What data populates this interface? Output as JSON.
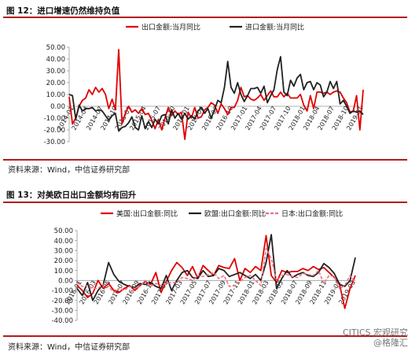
{
  "figures": [
    {
      "title": "图 12：进口增速仍然维持负值",
      "source": "资料来源：Wind，中信证券研究部"
    },
    {
      "title": "图 13：对美欧日出口金额均有回升",
      "source": "资料来源：Wind，中信证券研究部"
    }
  ],
  "watermark": {
    "line1": "CITICS 宏观研究",
    "line2": "@格隆汇"
  },
  "chart_data": [
    {
      "type": "line",
      "title": "",
      "ylim": [
        -30,
        50
      ],
      "yticks": [
        "50.00",
        "40.00",
        "30.00",
        "20.00",
        "10.00",
        "0.00",
        "-10.00",
        "-20.00",
        "-30.00"
      ],
      "yvals": [
        50,
        40,
        30,
        20,
        10,
        0,
        -10,
        -20,
        -30
      ],
      "xtick_labels": [
        "2014-01",
        "2014-04",
        "2014-07",
        "2014-10",
        "2015-01",
        "2015-04",
        "2015-07",
        "2015-10",
        "2016-01",
        "2016-04",
        "2016-07",
        "2016-10",
        "2017-01",
        "2017-04",
        "2017-07",
        "2017-10",
        "2018-01",
        "2018-04",
        "2018-07",
        "2018-10",
        "2019-01"
      ],
      "legend_position": "top",
      "series": [
        {
          "name": "出口金额:当月同比",
          "color": "#e00000",
          "dashed": false,
          "values": [
            8,
            -15,
            -10,
            0,
            5,
            7,
            14,
            10,
            16,
            12,
            15,
            10,
            -2,
            6,
            -3,
            48,
            -15,
            -6,
            0,
            -5,
            -3,
            -6,
            -2,
            -7,
            -6,
            -12,
            -19,
            -11,
            -20,
            -10,
            -1,
            -8,
            -4,
            -7,
            -5,
            -28,
            -5,
            -10,
            -1,
            -10,
            -9,
            -3,
            -1,
            3,
            1,
            -6,
            2,
            -2,
            -7,
            -1,
            -1,
            5,
            16,
            8,
            9,
            6,
            5,
            7,
            10,
            5,
            9,
            13,
            8,
            8,
            12,
            8,
            11,
            7,
            7,
            7,
            10,
            1,
            -4,
            9,
            -2,
            12,
            12,
            11,
            12,
            10,
            12,
            13,
            12,
            7,
            3,
            -5,
            -4,
            9,
            -20,
            14
          ]
        },
        {
          "name": "进口金额:当月同比",
          "color": "#222222",
          "dashed": false,
          "values": [
            10,
            9,
            -11,
            1,
            -4,
            -2,
            -2,
            -1,
            -4,
            -3,
            -4,
            -8,
            -12,
            -8,
            -6,
            -21,
            -18,
            -17,
            -14,
            -9,
            -18,
            -20,
            -8,
            -19,
            -13,
            -18,
            -11,
            -15,
            -8,
            -7,
            -15,
            -3,
            -10,
            -6,
            -11,
            -6,
            -11,
            -8,
            -11,
            -4,
            -1,
            -6,
            -2,
            -10,
            -3,
            5,
            3,
            16,
            38,
            16,
            11,
            20,
            10,
            4,
            9,
            15,
            15,
            16,
            11,
            17,
            3,
            9,
            14,
            31,
            42,
            12,
            9,
            22,
            17,
            24,
            27,
            14,
            20,
            21,
            14,
            20,
            18,
            8,
            12,
            21,
            15,
            21,
            2,
            5,
            0,
            -6,
            -4,
            -5,
            -4,
            -7
          ]
        }
      ]
    },
    {
      "type": "line",
      "title": "",
      "ylim": [
        -40,
        50
      ],
      "yticks": [
        "50.00",
        "40.00",
        "30.00",
        "20.00",
        "10.00",
        "0.00",
        "-10.00",
        "-20.00",
        "-30.00",
        "-40.00"
      ],
      "yvals": [
        50,
        40,
        30,
        20,
        10,
        0,
        -10,
        -20,
        -30,
        -40
      ],
      "xtick_labels": [
        "2016-01",
        "2016-03",
        "2016-05",
        "2016-07",
        "2016-09",
        "2016-11",
        "2017-01",
        "2017-03",
        "2017-05",
        "2017-07",
        "2017-09",
        "2017-11",
        "2018-01",
        "2018-03",
        "2018-05",
        "2018-07",
        "2018-09",
        "2018-11",
        "2019-01",
        "2019-03"
      ],
      "legend_position": "top",
      "series": [
        {
          "name": "美国:出口金额:同比",
          "color": "#e00000",
          "dashed": false,
          "values": [
            -5,
            -10,
            -17,
            -13,
            0,
            -8,
            -3,
            -10,
            -12,
            -8,
            -5,
            -10,
            -5,
            -1,
            -4,
            8,
            -12,
            -1,
            10,
            18,
            13,
            5,
            14,
            2,
            15,
            10,
            5,
            15,
            13,
            12,
            22,
            0,
            12,
            8,
            14,
            10,
            45,
            5,
            -2,
            10,
            8,
            9,
            9,
            12,
            10,
            14,
            11,
            13,
            8,
            3,
            -4,
            -28,
            -8,
            5
          ]
        },
        {
          "name": "欧盟:出口金额:同比",
          "color": "#222222",
          "dashed": false,
          "values": [
            -8,
            -15,
            -2,
            -20,
            -10,
            -4,
            18,
            6,
            -1,
            -4,
            -6,
            -7,
            -3,
            -4,
            -2,
            -6,
            -8,
            5,
            -10,
            0,
            8,
            10,
            3,
            2,
            10,
            4,
            5,
            12,
            10,
            4,
            6,
            8,
            5,
            2,
            6,
            0,
            18,
            46,
            -8,
            2,
            10,
            3,
            6,
            8,
            5,
            4,
            8,
            17,
            13,
            7,
            -4,
            -6,
            0,
            23
          ]
        },
        {
          "name": "日本:出口金额:同比",
          "color": "#f07080",
          "dashed": true,
          "values": [
            -2,
            -6,
            -5,
            -8,
            -8,
            -4,
            -6,
            -12,
            -8,
            -10,
            -6,
            -8,
            -6,
            0,
            -6,
            -3,
            -5,
            -3,
            -2,
            -2,
            3,
            2,
            0,
            5,
            4,
            6,
            8,
            2,
            5,
            -6,
            -5,
            -1,
            3,
            5,
            0,
            -5,
            32,
            22,
            0,
            5,
            6,
            4,
            3,
            7,
            6,
            5,
            10,
            -3,
            5,
            4,
            -8,
            -5,
            5,
            -2
          ]
        }
      ]
    }
  ]
}
